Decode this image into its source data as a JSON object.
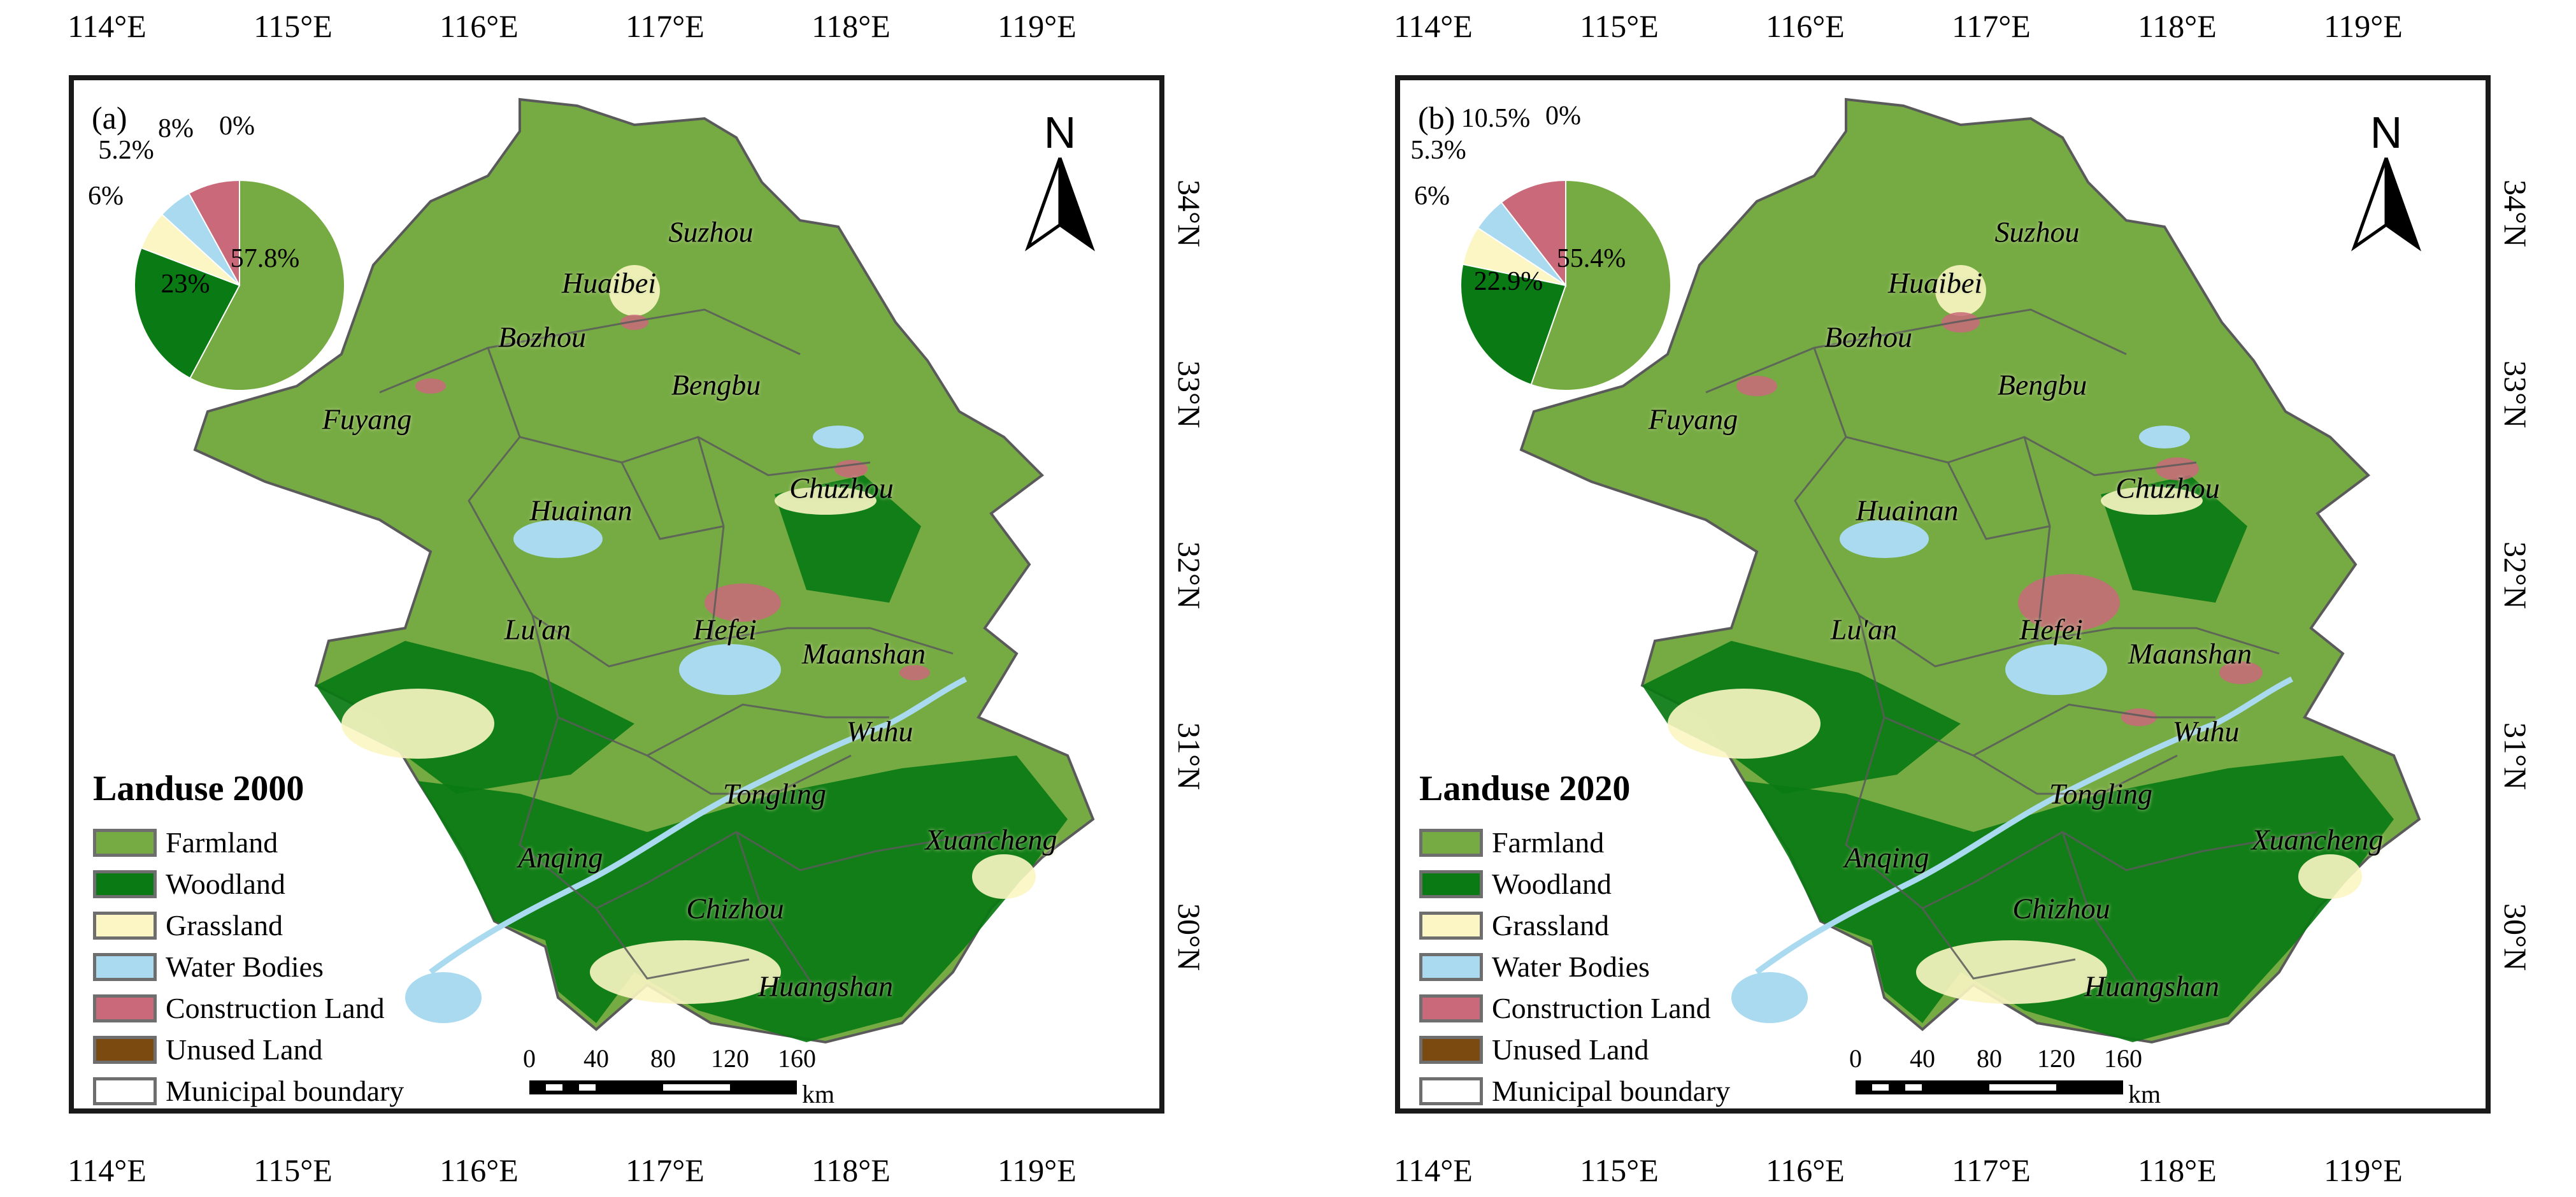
{
  "colors": {
    "farmland": "#76ab43",
    "woodland": "#0a7a14",
    "grassland": "#fbf6c3",
    "water": "#a9daf0",
    "construction": "#c9697a",
    "unused": "#7a4a10",
    "boundary": "#ffffff",
    "boundary_line": "#5a5a5a",
    "north_arrow": "#000000"
  },
  "axes": {
    "longitudes": [
      "114°E",
      "115°E",
      "116°E",
      "117°E",
      "118°E",
      "119°E"
    ],
    "latitudes": [
      "34°N",
      "33°N",
      "32°N",
      "31°N",
      "30°N"
    ]
  },
  "north_arrow": {
    "label": "N",
    "icon": "north-arrow-icon"
  },
  "scale": {
    "ticks": [
      "0",
      "40",
      "80",
      "120",
      "160"
    ],
    "unit": "km"
  },
  "legend": {
    "items": [
      {
        "label": "Farmland"
      },
      {
        "label": "Woodland"
      },
      {
        "label": "Grassland"
      },
      {
        "label": "Water Bodies"
      },
      {
        "label": "Construction Land"
      },
      {
        "label": "Unused Land"
      },
      {
        "label": "Municipal boundary"
      }
    ]
  },
  "cities": [
    "Suzhou",
    "Huaibei",
    "Bozhou",
    "Bengbu",
    "Fuyang",
    "Huainan",
    "Chuzhou",
    "Lu'an",
    "Hefei",
    "Maanshan",
    "Wuhu",
    "Tongling",
    "Anqing",
    "Xuancheng",
    "Chizhou",
    "Huangshan"
  ],
  "panels": [
    {
      "letter": "(a)",
      "legend_title": "Landuse 2000",
      "pie": {
        "order": [
          "farmland",
          "woodland",
          "grassland",
          "water",
          "construction",
          "unused"
        ],
        "values": [
          57.8,
          23,
          6,
          5.2,
          8,
          0
        ],
        "labels": [
          "57.8%",
          "23%",
          "6%",
          "5.2%",
          "8%",
          "0%"
        ]
      }
    },
    {
      "letter": "(b)",
      "legend_title": "Landuse 2020",
      "pie": {
        "order": [
          "farmland",
          "woodland",
          "grassland",
          "water",
          "construction",
          "unused"
        ],
        "values": [
          55.4,
          22.9,
          6,
          5.3,
          10.5,
          0
        ],
        "labels": [
          "55.4%",
          "22.9%",
          "6%",
          "5.3%",
          "10.5%",
          "0%"
        ]
      }
    }
  ]
}
